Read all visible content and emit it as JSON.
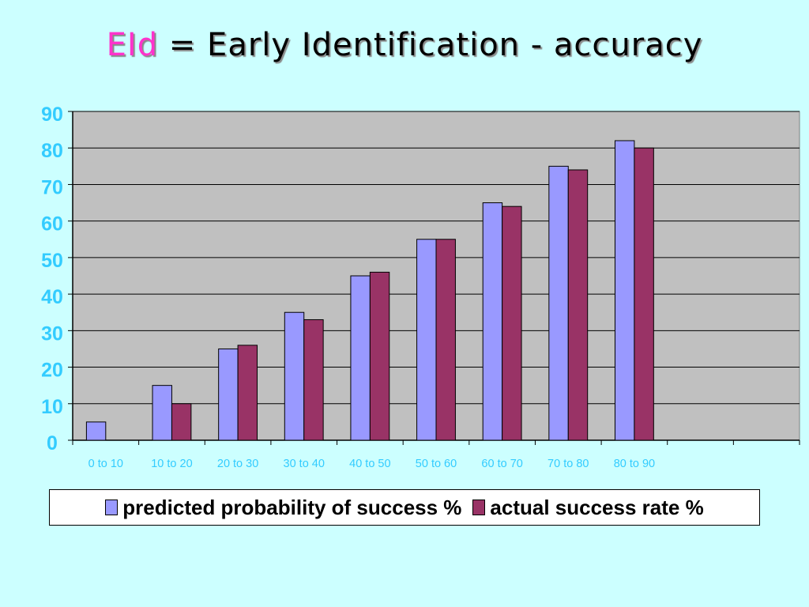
{
  "title": {
    "prefix": "EId",
    "rest": " = Early Identification - accuracy"
  },
  "colors": {
    "background": "#ccffff",
    "plot_area": "#c0c0c0",
    "predicted": "#9999ff",
    "actual": "#993366",
    "axis_labels": "#33ccff",
    "title_prefix": "#ff33cc"
  },
  "chart_data": {
    "type": "bar",
    "categories": [
      "0 to 10",
      "10 to 20",
      "20 to 30",
      "30 to 40",
      "40 to 50",
      "50 to 60",
      "60 to 70",
      "70 to 80",
      "80 to 90",
      "",
      ""
    ],
    "series": [
      {
        "name": "predicted probability of success %",
        "values": [
          5,
          15,
          25,
          35,
          45,
          55,
          65,
          75,
          82,
          null,
          null
        ]
      },
      {
        "name": "actual success rate %",
        "values": [
          null,
          10,
          26,
          33,
          46,
          55,
          64,
          74,
          80,
          null,
          null
        ]
      }
    ],
    "ylim": [
      0,
      90
    ],
    "yticks": [
      0,
      10,
      20,
      30,
      40,
      50,
      60,
      70,
      80,
      90
    ],
    "grid": true,
    "legend_position": "bottom",
    "xlabel": "",
    "ylabel": ""
  }
}
